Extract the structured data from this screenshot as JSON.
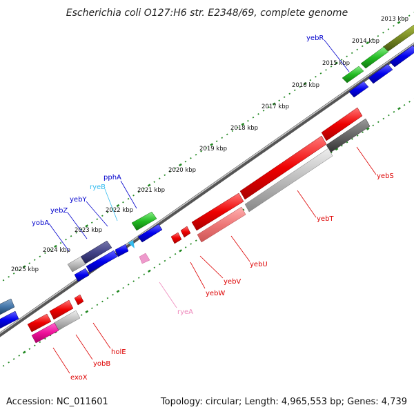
{
  "title": "Escherichia coli O127:H6 str. E2348/69, complete genome",
  "footer": {
    "accession": "Accession: NC_011601",
    "summary": "Topology: circular; Length: 4,965,553 bp; Genes: 4,739"
  },
  "ticks": [
    "2013 kbp",
    "2014 kbp",
    "2015 kbp",
    "2016 kbp",
    "2017 kbp",
    "2018 kbp",
    "2019 kbp",
    "2020 kbp",
    "2021 kbp",
    "2022 kbp",
    "2023 kbp",
    "2024 kbp",
    "2025 kbp"
  ],
  "colors": {
    "forward_label": "#0000cc",
    "reverse_label": "#dd0000",
    "rna_label": "#33bbee",
    "rna_label_pink": "#ee88bb",
    "backbone": "#777777",
    "tick_dots": "#228822"
  },
  "genes": {
    "yebR": "yebR",
    "pphA": "pphA",
    "ryeB": "ryeB",
    "yebY": "yebY",
    "yebZ": "yebZ",
    "yobA": "yobA",
    "yebS": "yebS",
    "yebT": "yebT",
    "yebU": "yebU",
    "yebV": "yebV",
    "yebW": "yebW",
    "ryeA": "ryeA",
    "holE": "holE",
    "yobB": "yobB",
    "exoX": "exoX"
  }
}
